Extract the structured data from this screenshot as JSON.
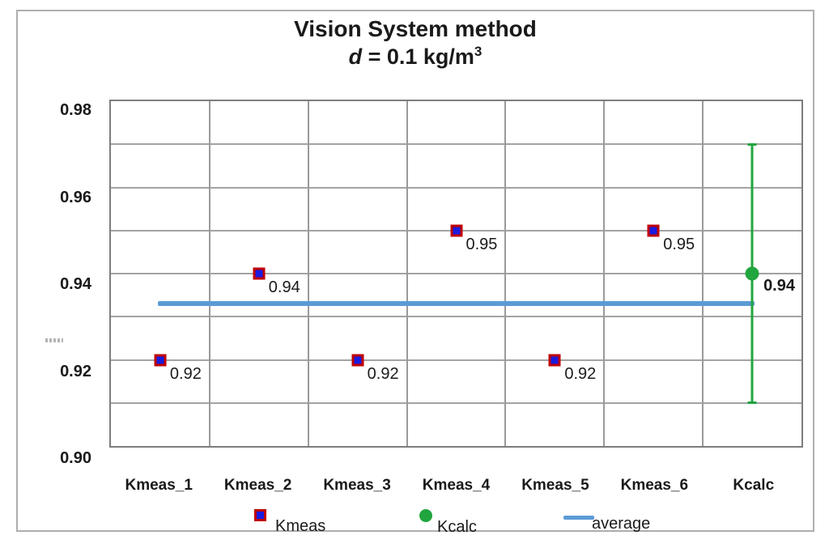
{
  "title": {
    "line1": "Vision System method",
    "d": "d",
    "mid": " = 0.1 kg/m",
    "sup": "3"
  },
  "y_axis": {
    "tick_labels": [
      "0.98",
      "0.96",
      "0.94",
      "0.92",
      "0.90"
    ]
  },
  "legend": [
    {
      "label": "Kmeas",
      "marker": "square"
    },
    {
      "label": "Kcalc",
      "marker": "circle"
    },
    {
      "label": "average",
      "marker": "line"
    }
  ],
  "colors": {
    "kmeas_fill": "#1b1bdf",
    "kmeas_border": "#c00000",
    "kcalc_green": "#21a53f",
    "average_blue": "#5b9bd5",
    "gridline": "#a3a3a3",
    "plot_border": "#7d7d7d"
  },
  "chart_data": {
    "type": "scatter",
    "title": "Vision System method",
    "subtitle": "d = 0.1 kg/m³",
    "categories": [
      "Kmeas_1",
      "Kmeas_2",
      "Kmeas_3",
      "Kmeas_4",
      "Kmeas_5",
      "Kmeas_6",
      "Kcalc"
    ],
    "series": [
      {
        "name": "Kmeas",
        "marker": "square",
        "values": [
          0.92,
          0.94,
          0.92,
          0.95,
          0.92,
          0.95,
          null
        ],
        "data_labels": [
          "0.92",
          "0.94",
          "0.92",
          "0.95",
          "0.92",
          "0.95",
          ""
        ]
      },
      {
        "name": "Kcalc",
        "marker": "circle",
        "values": [
          null,
          null,
          null,
          null,
          null,
          null,
          0.94
        ],
        "data_labels": [
          "",
          "",
          "",
          "",
          "",
          "",
          "0.94"
        ],
        "error_bar": {
          "high": 0.97,
          "low": 0.91
        }
      },
      {
        "name": "average",
        "marker": "line",
        "value": 0.933
      }
    ],
    "ylim": [
      0.9,
      0.98
    ],
    "ytick_step": 0.01,
    "ylabel_values": [
      0.98,
      0.96,
      0.94,
      0.92,
      0.9
    ],
    "grid": true,
    "legend_position": "bottom"
  }
}
